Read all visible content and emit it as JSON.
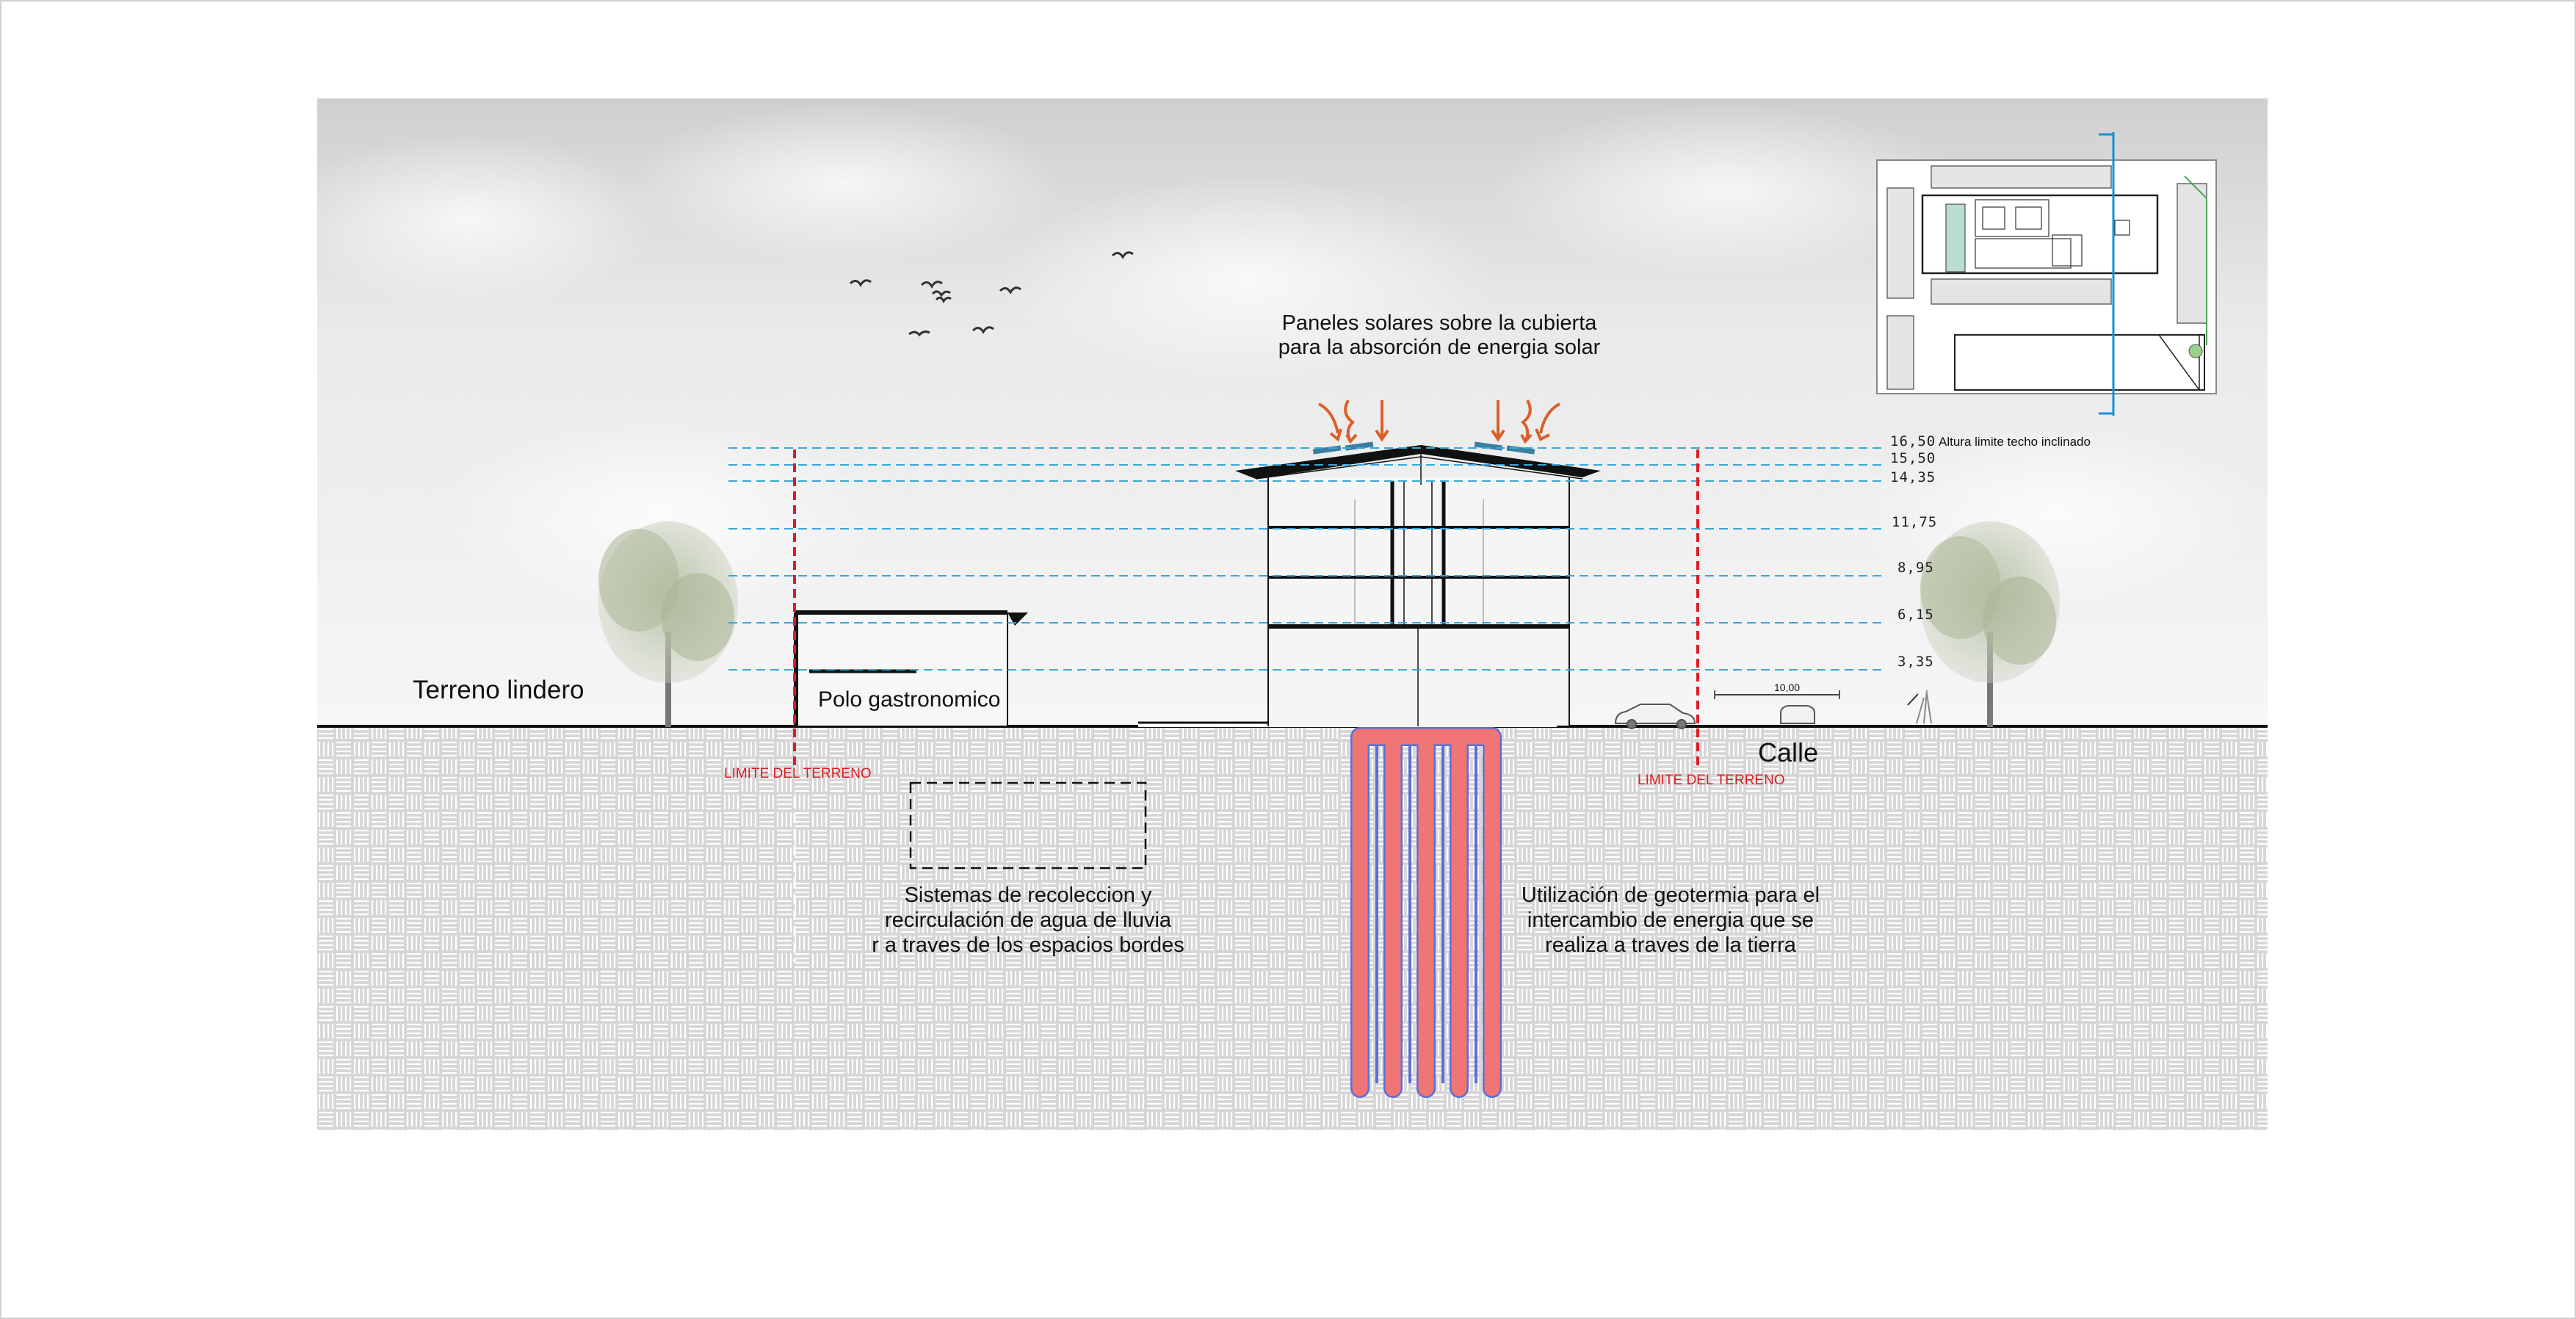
{
  "labels": {
    "solar": [
      "Paneles solares sobre la cubierta",
      "para la absorción de energia solar"
    ],
    "terreno_lindero": "Terreno lindero",
    "polo": "Polo gastronomico",
    "calle": "Calle",
    "limite_left": "LIMITE DEL TERRENO",
    "limite_right": "LIMITE DEL TERRENO",
    "lluvia": [
      "Sistemas de recoleccion y",
      "recirculación de agua de lluvia",
      "r a traves de los espacios bordes"
    ],
    "geotermia": [
      "Utilización de geotermia para el",
      "intercambio de energia que se",
      "realiza a traves de la tierra"
    ],
    "altura_limite": "Altura limite techo inclinado",
    "cota_calle": "10,00"
  },
  "levels": [
    "16,50",
    "15,50",
    "14,35",
    "11,75",
    "8,95",
    "6,15",
    "3,35"
  ],
  "colors": {
    "level_line": "#3aa6d8",
    "limit_line": "#e01b24",
    "geothermal_pipe": "#f07575",
    "pipe_outline": "#5a6fd8",
    "section_cut": "#1a8fd6"
  }
}
